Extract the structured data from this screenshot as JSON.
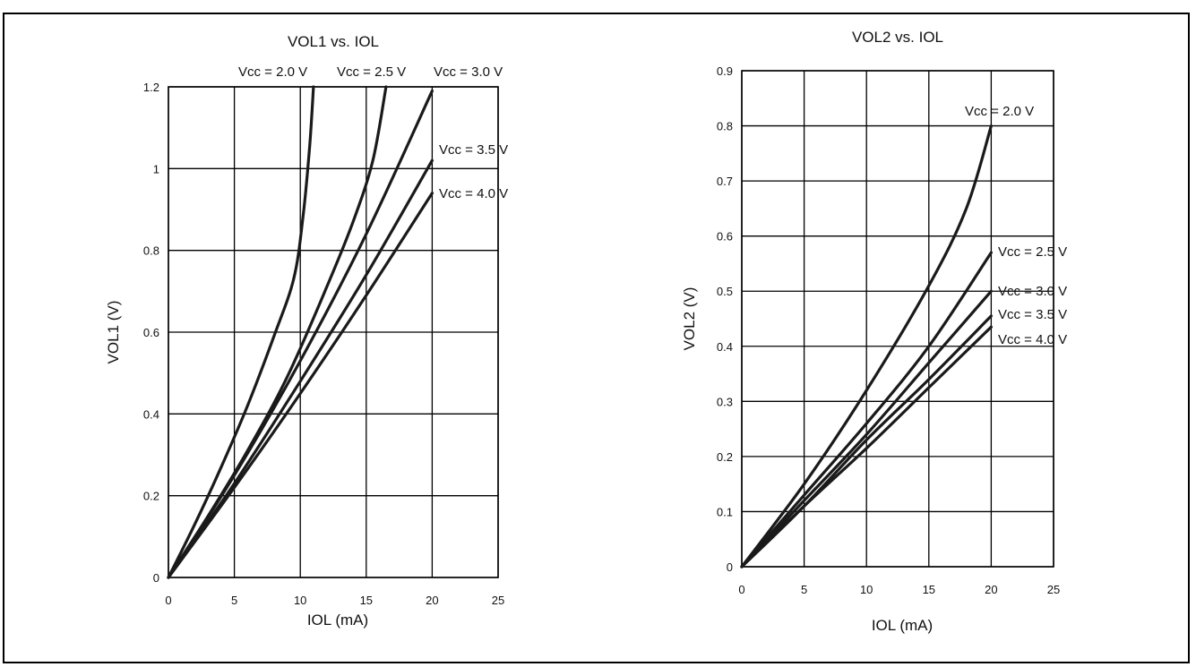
{
  "chart_data": [
    {
      "type": "line",
      "title": "VOL1 vs. IOL",
      "xlabel": "IOL (mA)",
      "ylabel": "VOL1 (V)",
      "xlim": [
        0,
        25
      ],
      "ylim": [
        0,
        1.2
      ],
      "xticks": [
        "0",
        "5",
        "10",
        "15",
        "20",
        "25"
      ],
      "yticks": [
        "0",
        "0.2",
        "0.4",
        "0.6",
        "0.8",
        "1",
        "1.2"
      ],
      "grid": true,
      "series": [
        {
          "name": "Vcc = 2.0 V",
          "x": [
            0,
            2,
            4,
            6,
            8,
            9.5,
            10.2,
            10.7,
            11.0
          ],
          "y": [
            0,
            0.13,
            0.27,
            0.42,
            0.59,
            0.73,
            0.88,
            1.05,
            1.2
          ]
        },
        {
          "name": "Vcc = 2.5 V",
          "x": [
            0,
            3,
            6,
            9,
            12,
            14,
            15.5,
            16.5
          ],
          "y": [
            0,
            0.15,
            0.31,
            0.49,
            0.71,
            0.87,
            1.02,
            1.2
          ]
        },
        {
          "name": "Vcc = 3.0 V",
          "x": [
            0,
            5,
            10,
            15,
            20
          ],
          "y": [
            0,
            0.25,
            0.53,
            0.84,
            1.19
          ]
        },
        {
          "name": "Vcc = 3.5 V",
          "x": [
            0,
            5,
            10,
            15,
            20
          ],
          "y": [
            0,
            0.23,
            0.48,
            0.74,
            1.02
          ]
        },
        {
          "name": "Vcc = 4.0 V",
          "x": [
            0,
            5,
            10,
            15,
            20
          ],
          "y": [
            0,
            0.22,
            0.45,
            0.69,
            0.94
          ]
        }
      ]
    },
    {
      "type": "line",
      "title": "VOL2 vs. IOL",
      "xlabel": "IOL (mA)",
      "ylabel": "VOL2 (V)",
      "xlim": [
        0,
        25
      ],
      "ylim": [
        0,
        0.9
      ],
      "xticks": [
        "0",
        "5",
        "10",
        "15",
        "20",
        "25"
      ],
      "yticks": [
        "0",
        "0.1",
        "0.2",
        "0.3",
        "0.4",
        "0.5",
        "0.6",
        "0.7",
        "0.8",
        "0.9"
      ],
      "grid": true,
      "series": [
        {
          "name": "Vcc = 2.0 V",
          "x": [
            0,
            5,
            10,
            15,
            18,
            20
          ],
          "y": [
            0,
            0.15,
            0.32,
            0.51,
            0.65,
            0.8
          ]
        },
        {
          "name": "Vcc = 2.5 V",
          "x": [
            0,
            5,
            10,
            15,
            20
          ],
          "y": [
            0,
            0.13,
            0.26,
            0.4,
            0.57
          ]
        },
        {
          "name": "Vcc = 3.0 V",
          "x": [
            0,
            5,
            10,
            15,
            20
          ],
          "y": [
            0,
            0.12,
            0.24,
            0.37,
            0.5
          ]
        },
        {
          "name": "Vcc = 3.5 V",
          "x": [
            0,
            5,
            10,
            15,
            20
          ],
          "y": [
            0,
            0.11,
            0.23,
            0.34,
            0.455
          ]
        },
        {
          "name": "Vcc = 4.0 V",
          "x": [
            0,
            5,
            10,
            15,
            20
          ],
          "y": [
            0,
            0.11,
            0.215,
            0.325,
            0.435
          ]
        }
      ]
    }
  ]
}
